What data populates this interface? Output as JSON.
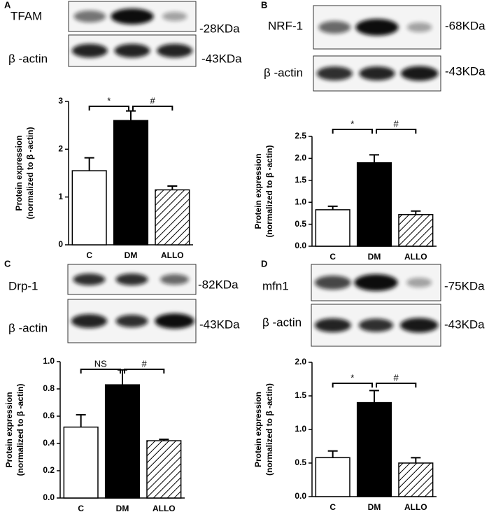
{
  "chart_data": [
    {
      "type": "bar",
      "panel": "A",
      "blots": [
        {
          "label": "TFAM",
          "size": "-28KDa"
        },
        {
          "label": "β -actin",
          "size": "-43KDa"
        }
      ],
      "ylabel": [
        "Protein expression",
        "(normalized to β -actin)"
      ],
      "categories": [
        "C",
        "DM",
        "ALLO"
      ],
      "values": [
        1.55,
        2.6,
        1.15
      ],
      "errors": [
        0.27,
        0.2,
        0.08
      ],
      "colors": [
        "#ffffff",
        "#000000",
        "#ffffff"
      ],
      "hatch": [
        false,
        false,
        true
      ],
      "ylim": [
        0,
        3
      ],
      "yticks": [
        0,
        1,
        2,
        3
      ],
      "annotations": [
        "*",
        "#"
      ]
    },
    {
      "type": "bar",
      "panel": "B",
      "blots": [
        {
          "label": "NRF-1",
          "size": "-68KDa"
        },
        {
          "label": "β -actin",
          "size": "-43KDa"
        }
      ],
      "ylabel": [
        "Protein expression",
        "(normalized to β -actin)"
      ],
      "categories": [
        "C",
        "DM",
        "ALLO"
      ],
      "values": [
        0.83,
        1.9,
        0.72
      ],
      "errors": [
        0.08,
        0.18,
        0.08
      ],
      "colors": [
        "#ffffff",
        "#000000",
        "#ffffff"
      ],
      "hatch": [
        false,
        false,
        true
      ],
      "ylim": [
        0,
        2.5
      ],
      "yticks": [
        {
          "value": 0,
          "label": "0.0"
        },
        0.5,
        {
          "value": 1,
          "label": "1.0"
        },
        1.5,
        {
          "value": 2,
          "label": "2.0"
        },
        2.5
      ],
      "annotations": [
        "*",
        "#"
      ]
    },
    {
      "type": "bar",
      "panel": "C",
      "blots": [
        {
          "label": "Drp-1",
          "size": "-82KDa"
        },
        {
          "label": "β -actin",
          "size": "-43KDa"
        }
      ],
      "ylabel": [
        "Protein expression",
        "(normalized to β -actin)"
      ],
      "categories": [
        "C",
        "DM",
        "ALLO"
      ],
      "values": [
        0.52,
        0.83,
        0.42
      ],
      "errors": [
        0.09,
        0.11,
        0.01
      ],
      "colors": [
        "#ffffff",
        "#000000",
        "#ffffff"
      ],
      "hatch": [
        false,
        false,
        true
      ],
      "ylim": [
        0,
        1
      ],
      "yticks": [
        {
          "value": 0,
          "label": "0.0"
        },
        0.2,
        0.4,
        0.6,
        0.8,
        {
          "value": 1,
          "label": "1.0"
        }
      ],
      "annotations": [
        "NS",
        "#"
      ]
    },
    {
      "type": "bar",
      "panel": "D",
      "blots": [
        {
          "label": "mfn1",
          "size": "-75KDa"
        },
        {
          "label": "β -actin",
          "size": "-43KDa"
        }
      ],
      "ylabel": [
        "Protein expression",
        "(normalized to β -actin)"
      ],
      "categories": [
        "C",
        "DM",
        "ALLO"
      ],
      "values": [
        0.58,
        1.4,
        0.5
      ],
      "errors": [
        0.1,
        0.18,
        0.08
      ],
      "colors": [
        "#ffffff",
        "#000000",
        "#ffffff"
      ],
      "hatch": [
        false,
        false,
        true
      ],
      "ylim": [
        0,
        2
      ],
      "yticks": [
        {
          "value": 0,
          "label": "0.0"
        },
        0.5,
        {
          "value": 1,
          "label": "1.0"
        },
        1.5,
        {
          "value": 2,
          "label": "2.0"
        }
      ],
      "annotations": [
        "*",
        "#"
      ]
    }
  ]
}
